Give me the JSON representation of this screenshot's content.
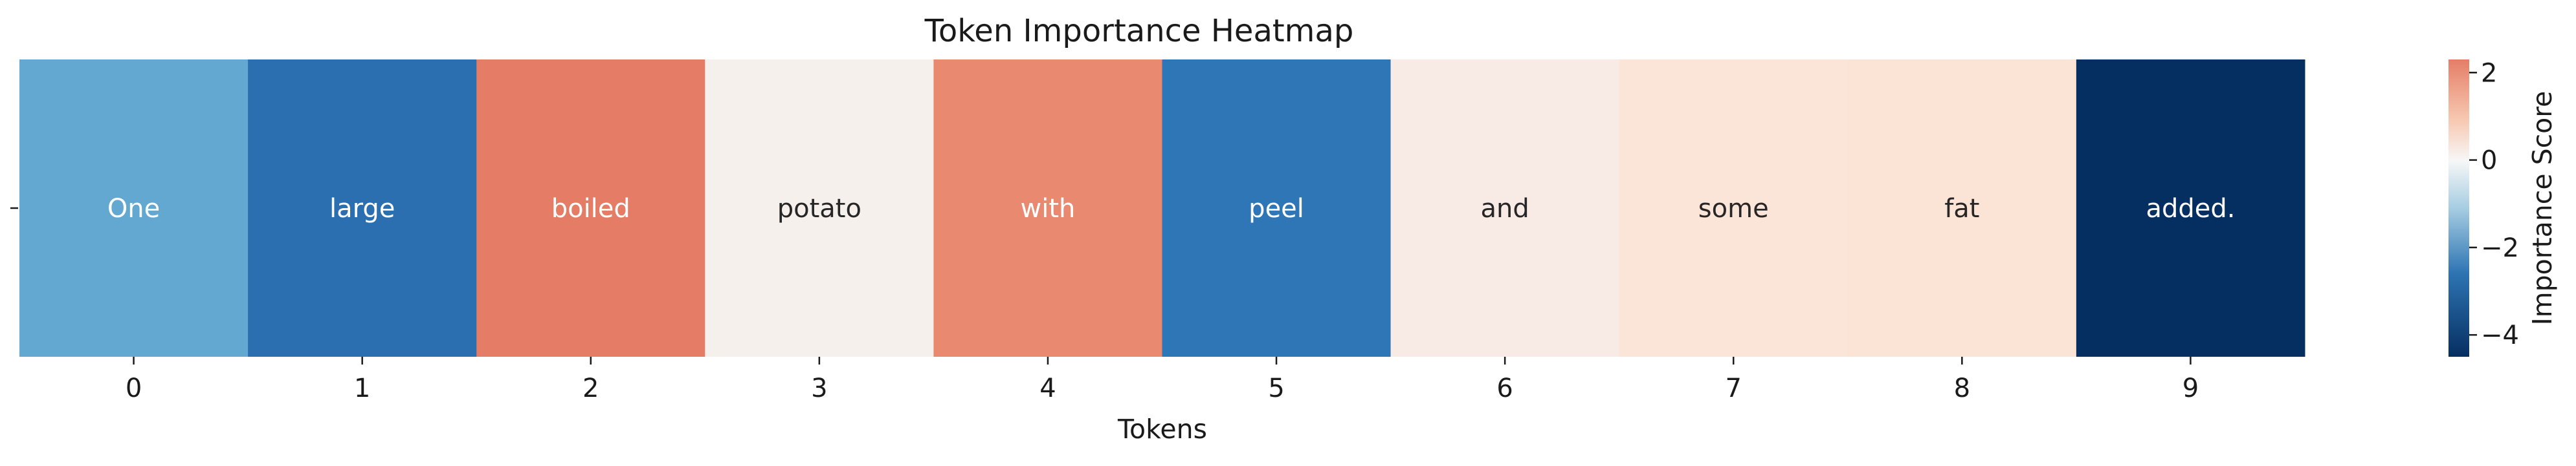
{
  "chart_data": {
    "type": "heatmap",
    "title": "Token Importance Heatmap",
    "xlabel": "Tokens",
    "ylabel": "",
    "x": [
      "0",
      "1",
      "2",
      "3",
      "4",
      "5",
      "6",
      "7",
      "8",
      "9"
    ],
    "y_ticks": [
      ""
    ],
    "tokens": [
      "One",
      "large",
      "boiled",
      "potato",
      "with",
      "peel",
      "and",
      "some",
      "fat",
      "added."
    ],
    "values": [
      -2.0,
      -3.3,
      1.95,
      0.1,
      1.75,
      -3.1,
      0.25,
      0.55,
      0.6,
      -4.5
    ],
    "colorbar": {
      "label": "Importance Score",
      "vmin": -4.5,
      "vmax": 2.3,
      "ticks": [
        2,
        0,
        -2,
        -4
      ],
      "tick_labels": [
        "2",
        "0",
        "−2",
        "−4"
      ]
    },
    "grid": false,
    "legend": "none",
    "cell_colors": [
      "#62a8d0",
      "#2b6fb0",
      "#e57d66",
      "#f6f0ec",
      "#e9896f",
      "#2e76b5",
      "#f8ebe6",
      "#fbe5d9",
      "#fbe3d5",
      "#062f61"
    ],
    "text_colors": [
      "#ffffff",
      "#ffffff",
      "#ffffff",
      "#262626",
      "#ffffff",
      "#ffffff",
      "#262626",
      "#262626",
      "#262626",
      "#ffffff"
    ],
    "colorbar_stops": [
      {
        "offset": 0.0,
        "color": "#e57d66"
      },
      {
        "offset": 0.2,
        "color": "#f7c7b0"
      },
      {
        "offset": 0.34,
        "color": "#f7f7f7"
      },
      {
        "offset": 0.5,
        "color": "#a7cde2"
      },
      {
        "offset": 0.72,
        "color": "#2d74b3"
      },
      {
        "offset": 1.0,
        "color": "#062f61"
      }
    ]
  }
}
